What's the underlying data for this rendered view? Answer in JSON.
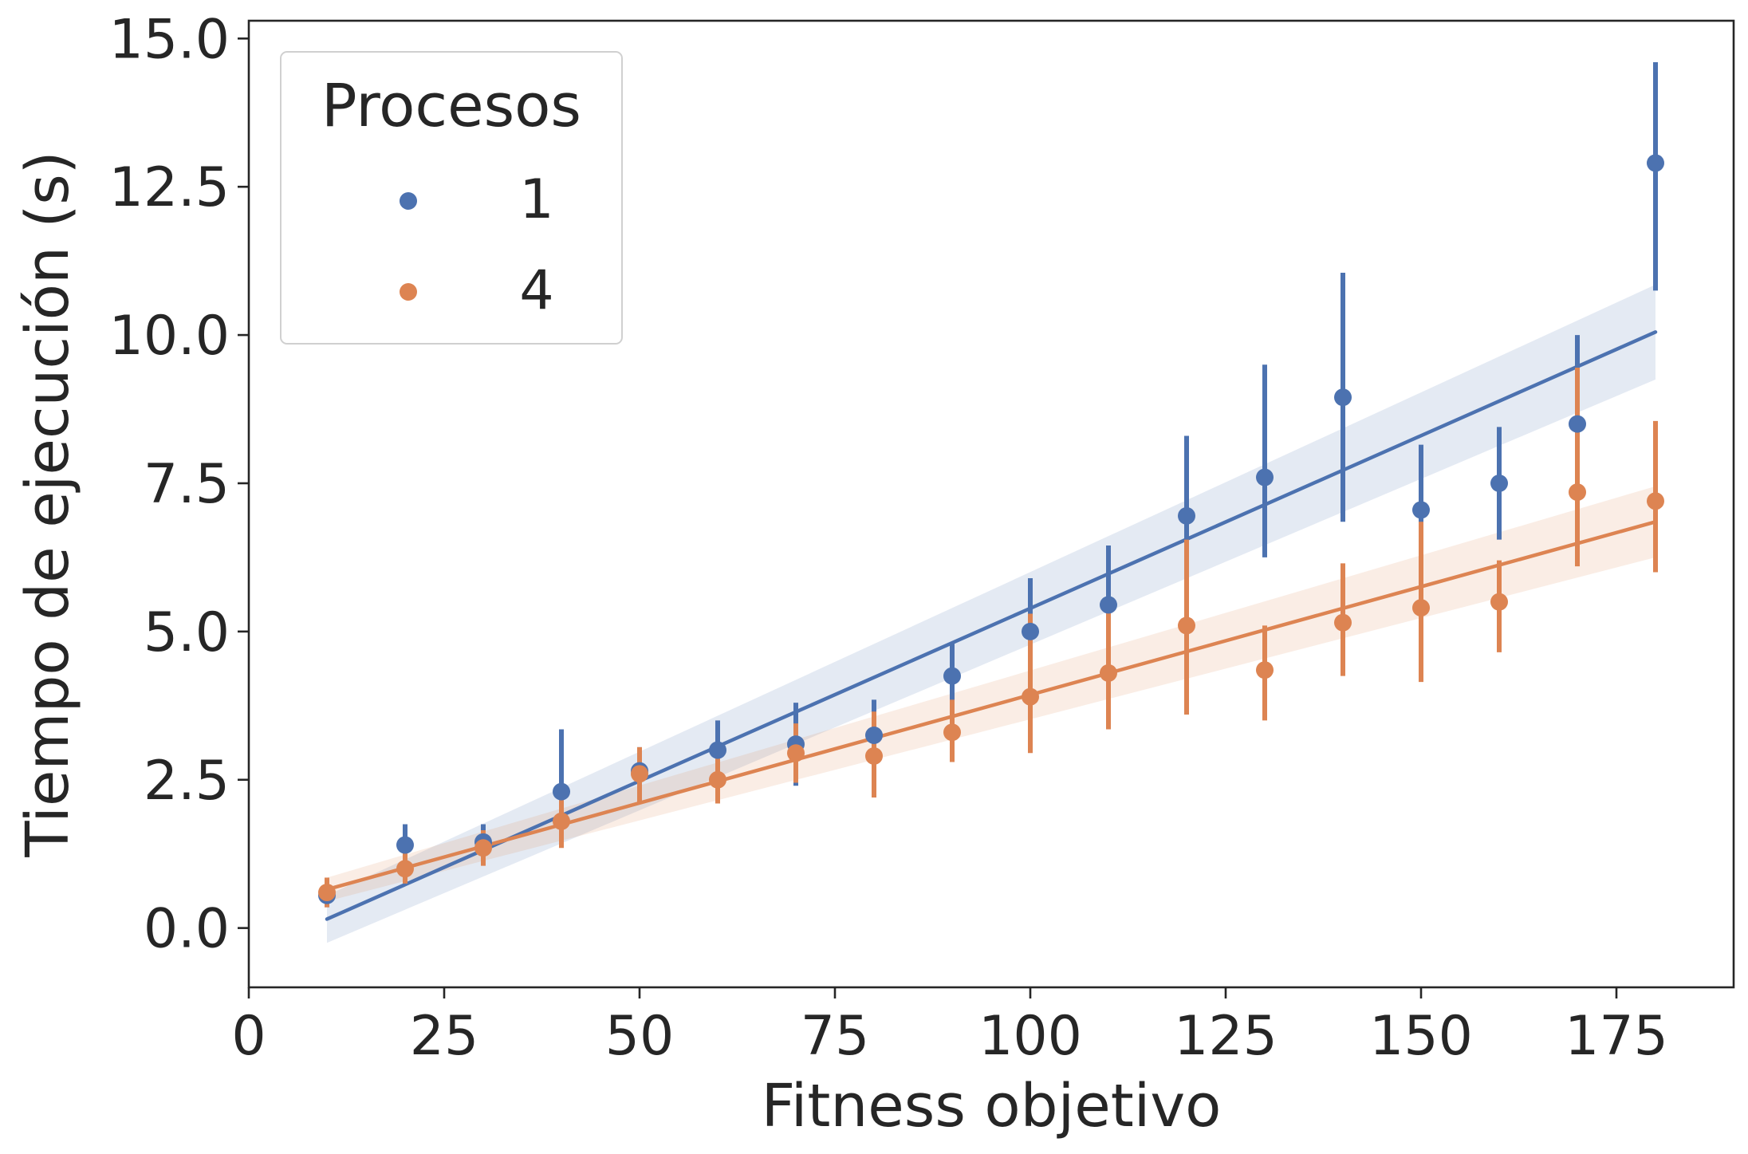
{
  "chart_data": {
    "type": "scatter",
    "xlabel": "Fitness objetivo",
    "ylabel": "Tiempo de ejecución (s)",
    "xlim": [
      0,
      190
    ],
    "ylim": [
      -1,
      15.3
    ],
    "x_ticks": [
      0,
      25,
      50,
      75,
      100,
      125,
      150,
      175
    ],
    "x_tick_labels": [
      "0",
      "25",
      "50",
      "75",
      "100",
      "125",
      "150",
      "175"
    ],
    "y_ticks": [
      0,
      2.5,
      5,
      7.5,
      10,
      12.5,
      15
    ],
    "y_tick_labels": [
      "0.0",
      "2.5",
      "5.0",
      "7.5",
      "10.0",
      "12.5",
      "15.0"
    ],
    "grid": false,
    "legend": {
      "title": "Procesos",
      "placement": "top-left"
    },
    "series": [
      {
        "name": "1",
        "color": "#4c72b0",
        "x": [
          10,
          20,
          30,
          40,
          50,
          60,
          70,
          80,
          90,
          100,
          110,
          120,
          130,
          140,
          150,
          160,
          170,
          180
        ],
        "y": [
          0.55,
          1.4,
          1.45,
          2.3,
          2.65,
          3.0,
          3.1,
          3.25,
          4.25,
          5.0,
          5.45,
          6.95,
          7.6,
          8.95,
          7.05,
          7.5,
          8.5,
          12.9
        ],
        "err_low": [
          0.35,
          1.1,
          1.1,
          1.65,
          2.2,
          2.55,
          2.4,
          2.9,
          3.7,
          4.25,
          4.55,
          5.75,
          6.25,
          6.85,
          5.85,
          6.55,
          6.65,
          10.75
        ],
        "err_high": [
          0.75,
          1.75,
          1.75,
          3.35,
          3.05,
          3.5,
          3.8,
          3.85,
          4.8,
          5.9,
          6.45,
          8.3,
          9.5,
          11.05,
          8.15,
          8.45,
          10.0,
          14.6
        ],
        "fit": {
          "x": [
            10,
            180
          ],
          "y": [
            0.15,
            10.05
          ]
        },
        "ci_low": [
          -0.25,
          9.25
        ],
        "ci_high": [
          0.55,
          10.85
        ]
      },
      {
        "name": "4",
        "color": "#dd8452",
        "x": [
          10,
          20,
          30,
          40,
          50,
          60,
          70,
          80,
          90,
          100,
          110,
          120,
          130,
          140,
          150,
          160,
          170,
          180
        ],
        "y": [
          0.6,
          1.0,
          1.35,
          1.8,
          2.6,
          2.5,
          2.95,
          2.9,
          3.3,
          3.9,
          4.3,
          5.1,
          4.35,
          5.15,
          5.4,
          5.5,
          7.35,
          7.2
        ],
        "err_low": [
          0.35,
          0.75,
          1.05,
          1.35,
          2.1,
          2.1,
          2.45,
          2.2,
          2.8,
          2.95,
          3.35,
          3.6,
          3.5,
          4.25,
          4.15,
          4.65,
          6.1,
          6.0
        ],
        "err_high": [
          0.85,
          1.3,
          1.65,
          2.3,
          3.05,
          2.95,
          3.45,
          3.65,
          3.85,
          5.3,
          5.45,
          6.55,
          5.1,
          6.15,
          6.85,
          6.2,
          9.45,
          8.55
        ],
        "fit": {
          "x": [
            10,
            180
          ],
          "y": [
            0.65,
            6.85
          ]
        },
        "ci_low": [
          0.45,
          6.25
        ],
        "ci_high": [
          0.85,
          7.45
        ]
      }
    ]
  }
}
